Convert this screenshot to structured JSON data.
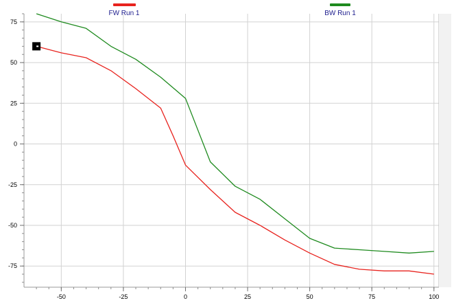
{
  "chart_data": {
    "type": "line",
    "title": "",
    "xlabel": "",
    "ylabel": "",
    "xlim": [
      -65,
      102
    ],
    "ylim": [
      -88,
      80
    ],
    "grid": true,
    "legend_position": "top",
    "x_ticks": [
      -50,
      -25,
      0,
      25,
      50,
      75,
      100
    ],
    "y_ticks": [
      75,
      50,
      25,
      0,
      -25,
      -50,
      -75
    ],
    "series": [
      {
        "name": "FW Run 1",
        "color": "#e8231e",
        "x": [
          -60,
          -50,
          -40,
          -30,
          -20,
          -10,
          -5,
          0,
          10,
          20,
          30,
          40,
          50,
          60,
          70,
          80,
          90,
          100
        ],
        "y": [
          60,
          56,
          53,
          45,
          34,
          22,
          5,
          -13,
          -28,
          -42,
          -50,
          -59,
          -67,
          -74,
          -77,
          -78,
          -78,
          -80
        ]
      },
      {
        "name": "BW Run 1",
        "color": "#1e8a1e",
        "x": [
          -60,
          -50,
          -40,
          -30,
          -20,
          -10,
          0,
          10,
          20,
          30,
          40,
          50,
          60,
          70,
          80,
          90,
          100
        ],
        "y": [
          80,
          75,
          71,
          60,
          52,
          41,
          28,
          -11,
          -26,
          -34,
          -46,
          -58,
          -64,
          -65,
          -66,
          -67,
          -66
        ]
      }
    ],
    "marker": {
      "series": "FW Run 1",
      "x": -60,
      "y": 60
    }
  }
}
